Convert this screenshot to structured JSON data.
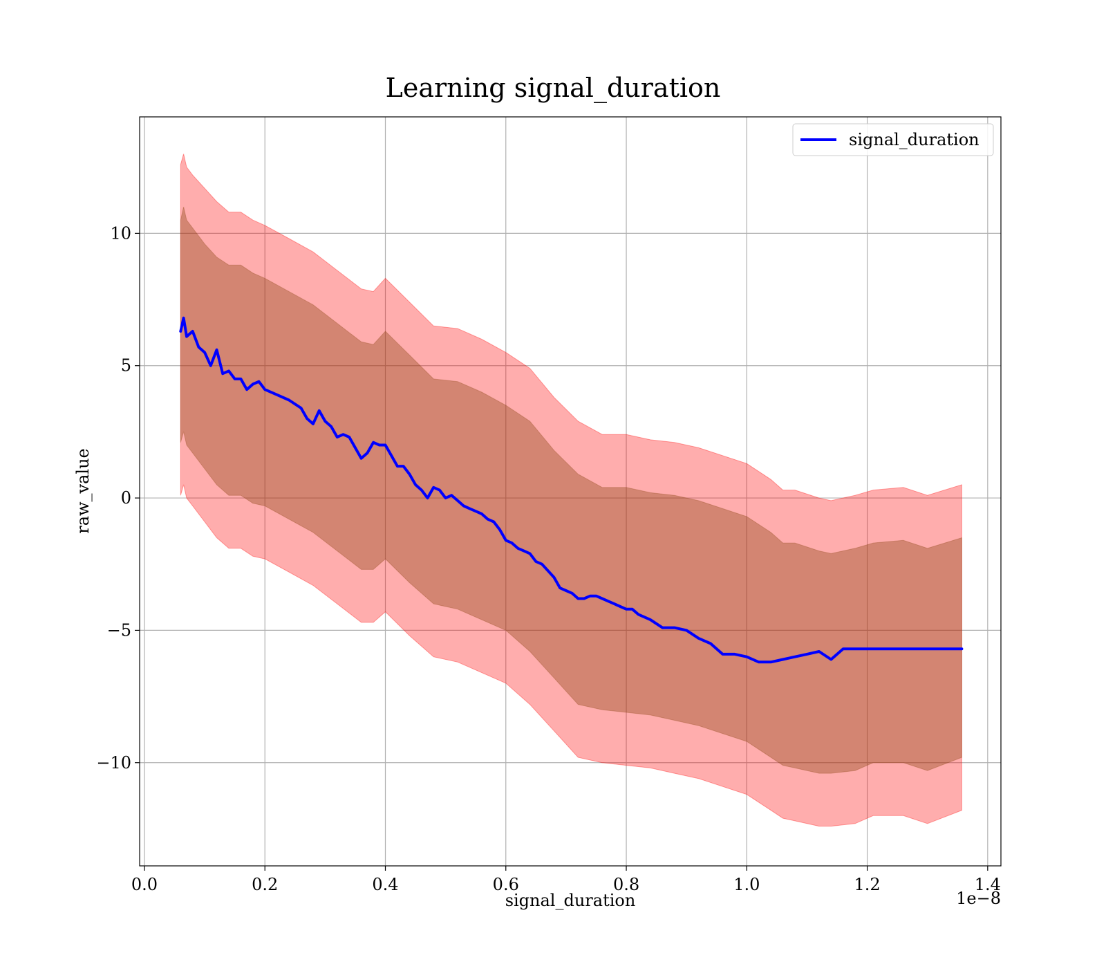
{
  "colors": {
    "mean_line": "#0000ff",
    "outer_band": "#ff0000",
    "inner_band": "#8b4513",
    "grid": "#b0b0b0",
    "axes": "#000000"
  },
  "chart_data": {
    "type": "line",
    "title": "Learning signal_duration",
    "xlabel": "signal_duration",
    "ylabel": "raw_value",
    "x_scale_label": "1e−8",
    "xlim": [
      -0.008,
      1.422
    ],
    "ylim": [
      -13.9,
      14.4
    ],
    "xticks": [
      0.0,
      0.2,
      0.4,
      0.6,
      0.8,
      1.0,
      1.2,
      1.4
    ],
    "xtick_labels": [
      "0.0",
      "0.2",
      "0.4",
      "0.6",
      "0.8",
      "1.0",
      "1.2",
      "1.4"
    ],
    "yticks": [
      10,
      5,
      0,
      -5,
      -10
    ],
    "ytick_labels": [
      "10",
      "5",
      "0",
      "−5",
      "−10"
    ],
    "grid": true,
    "legend": {
      "position": "top-right",
      "entries": [
        "signal_duration"
      ]
    },
    "series": [
      {
        "name": "signal_duration",
        "x": [
          0.06,
          0.065,
          0.07,
          0.08,
          0.09,
          0.1,
          0.11,
          0.12,
          0.13,
          0.14,
          0.15,
          0.16,
          0.17,
          0.18,
          0.19,
          0.2,
          0.22,
          0.24,
          0.26,
          0.27,
          0.28,
          0.29,
          0.3,
          0.31,
          0.32,
          0.33,
          0.34,
          0.35,
          0.36,
          0.37,
          0.38,
          0.39,
          0.4,
          0.41,
          0.42,
          0.43,
          0.44,
          0.45,
          0.46,
          0.47,
          0.48,
          0.49,
          0.5,
          0.51,
          0.52,
          0.53,
          0.54,
          0.55,
          0.56,
          0.57,
          0.58,
          0.59,
          0.6,
          0.61,
          0.62,
          0.63,
          0.64,
          0.65,
          0.66,
          0.68,
          0.69,
          0.7,
          0.71,
          0.72,
          0.73,
          0.74,
          0.75,
          0.76,
          0.77,
          0.78,
          0.79,
          0.8,
          0.81,
          0.82,
          0.84,
          0.86,
          0.88,
          0.9,
          0.92,
          0.94,
          0.96,
          0.98,
          1.0,
          1.02,
          1.04,
          1.06,
          1.08,
          1.1,
          1.12,
          1.14,
          1.16,
          1.18,
          1.21,
          1.26,
          1.3,
          1.35,
          1.357
        ],
        "values": [
          6.3,
          6.8,
          6.1,
          6.3,
          5.7,
          5.5,
          5.0,
          5.6,
          4.7,
          4.8,
          4.5,
          4.5,
          4.1,
          4.3,
          4.4,
          4.1,
          3.9,
          3.7,
          3.4,
          3.0,
          2.8,
          3.3,
          2.9,
          2.7,
          2.3,
          2.4,
          2.3,
          1.9,
          1.5,
          1.7,
          2.1,
          2.0,
          2.0,
          1.6,
          1.2,
          1.2,
          0.9,
          0.5,
          0.3,
          0.0,
          0.4,
          0.3,
          0.0,
          0.1,
          -0.1,
          -0.3,
          -0.4,
          -0.5,
          -0.6,
          -0.8,
          -0.9,
          -1.2,
          -1.6,
          -1.7,
          -1.9,
          -2.0,
          -2.1,
          -2.4,
          -2.5,
          -3.0,
          -3.4,
          -3.5,
          -3.6,
          -3.8,
          -3.8,
          -3.7,
          -3.7,
          -3.8,
          -3.9,
          -4.0,
          -4.1,
          -4.2,
          -4.2,
          -4.4,
          -4.6,
          -4.9,
          -4.9,
          -5.0,
          -5.3,
          -5.5,
          -5.9,
          -5.9,
          -6.0,
          -6.2,
          -6.2,
          -6.1,
          -6.0,
          -5.9,
          -5.8,
          -6.1,
          -5.7,
          -5.7,
          -5.7,
          -5.7,
          -5.7,
          -5.7,
          -5.7
        ]
      }
    ],
    "bands": [
      {
        "role": "outer",
        "x": [
          0.06,
          0.065,
          0.07,
          0.08,
          0.1,
          0.12,
          0.14,
          0.16,
          0.18,
          0.2,
          0.24,
          0.28,
          0.32,
          0.36,
          0.38,
          0.4,
          0.44,
          0.48,
          0.52,
          0.56,
          0.6,
          0.64,
          0.68,
          0.72,
          0.76,
          0.8,
          0.84,
          0.88,
          0.92,
          0.96,
          1.0,
          1.04,
          1.06,
          1.08,
          1.12,
          1.14,
          1.18,
          1.21,
          1.26,
          1.3,
          1.357
        ],
        "upper": [
          12.6,
          13.0,
          12.5,
          12.2,
          11.7,
          11.2,
          10.8,
          10.8,
          10.5,
          10.3,
          9.8,
          9.3,
          8.6,
          7.9,
          7.8,
          8.3,
          7.4,
          6.5,
          6.4,
          6.0,
          5.5,
          4.9,
          3.8,
          2.9,
          2.4,
          2.4,
          2.2,
          2.1,
          1.9,
          1.6,
          1.3,
          0.7,
          0.3,
          0.3,
          0.0,
          -0.1,
          0.1,
          0.3,
          0.4,
          0.1,
          0.5
        ],
        "lower": [
          0.1,
          0.5,
          0.0,
          -0.3,
          -0.9,
          -1.5,
          -1.9,
          -1.9,
          -2.2,
          -2.3,
          -2.8,
          -3.3,
          -4.0,
          -4.7,
          -4.7,
          -4.3,
          -5.2,
          -6.0,
          -6.2,
          -6.6,
          -7.0,
          -7.8,
          -8.8,
          -9.8,
          -10.0,
          -10.1,
          -10.2,
          -10.4,
          -10.6,
          -10.9,
          -11.2,
          -11.8,
          -12.1,
          -12.2,
          -12.4,
          -12.4,
          -12.3,
          -12.0,
          -12.0,
          -12.3,
          -11.8
        ]
      },
      {
        "role": "inner",
        "x": [
          0.06,
          0.065,
          0.07,
          0.08,
          0.1,
          0.12,
          0.14,
          0.16,
          0.18,
          0.2,
          0.24,
          0.28,
          0.32,
          0.36,
          0.38,
          0.4,
          0.44,
          0.48,
          0.52,
          0.56,
          0.6,
          0.64,
          0.68,
          0.72,
          0.76,
          0.8,
          0.84,
          0.88,
          0.92,
          0.96,
          1.0,
          1.04,
          1.06,
          1.08,
          1.12,
          1.14,
          1.18,
          1.21,
          1.26,
          1.3,
          1.357
        ],
        "upper": [
          10.5,
          11.0,
          10.5,
          10.2,
          9.6,
          9.1,
          8.8,
          8.8,
          8.5,
          8.3,
          7.8,
          7.3,
          6.6,
          5.9,
          5.8,
          6.3,
          5.4,
          4.5,
          4.4,
          4.0,
          3.5,
          2.9,
          1.8,
          0.9,
          0.4,
          0.4,
          0.2,
          0.1,
          -0.1,
          -0.4,
          -0.7,
          -1.3,
          -1.7,
          -1.7,
          -2.0,
          -2.1,
          -1.9,
          -1.7,
          -1.6,
          -1.9,
          -1.5
        ],
        "lower": [
          2.1,
          2.5,
          2.0,
          1.7,
          1.1,
          0.5,
          0.1,
          0.1,
          -0.2,
          -0.3,
          -0.8,
          -1.3,
          -2.0,
          -2.7,
          -2.7,
          -2.3,
          -3.2,
          -4.0,
          -4.2,
          -4.6,
          -5.0,
          -5.8,
          -6.8,
          -7.8,
          -8.0,
          -8.1,
          -8.2,
          -8.4,
          -8.6,
          -8.9,
          -9.2,
          -9.8,
          -10.1,
          -10.2,
          -10.4,
          -10.4,
          -10.3,
          -10.0,
          -10.0,
          -10.3,
          -9.8
        ]
      }
    ]
  }
}
